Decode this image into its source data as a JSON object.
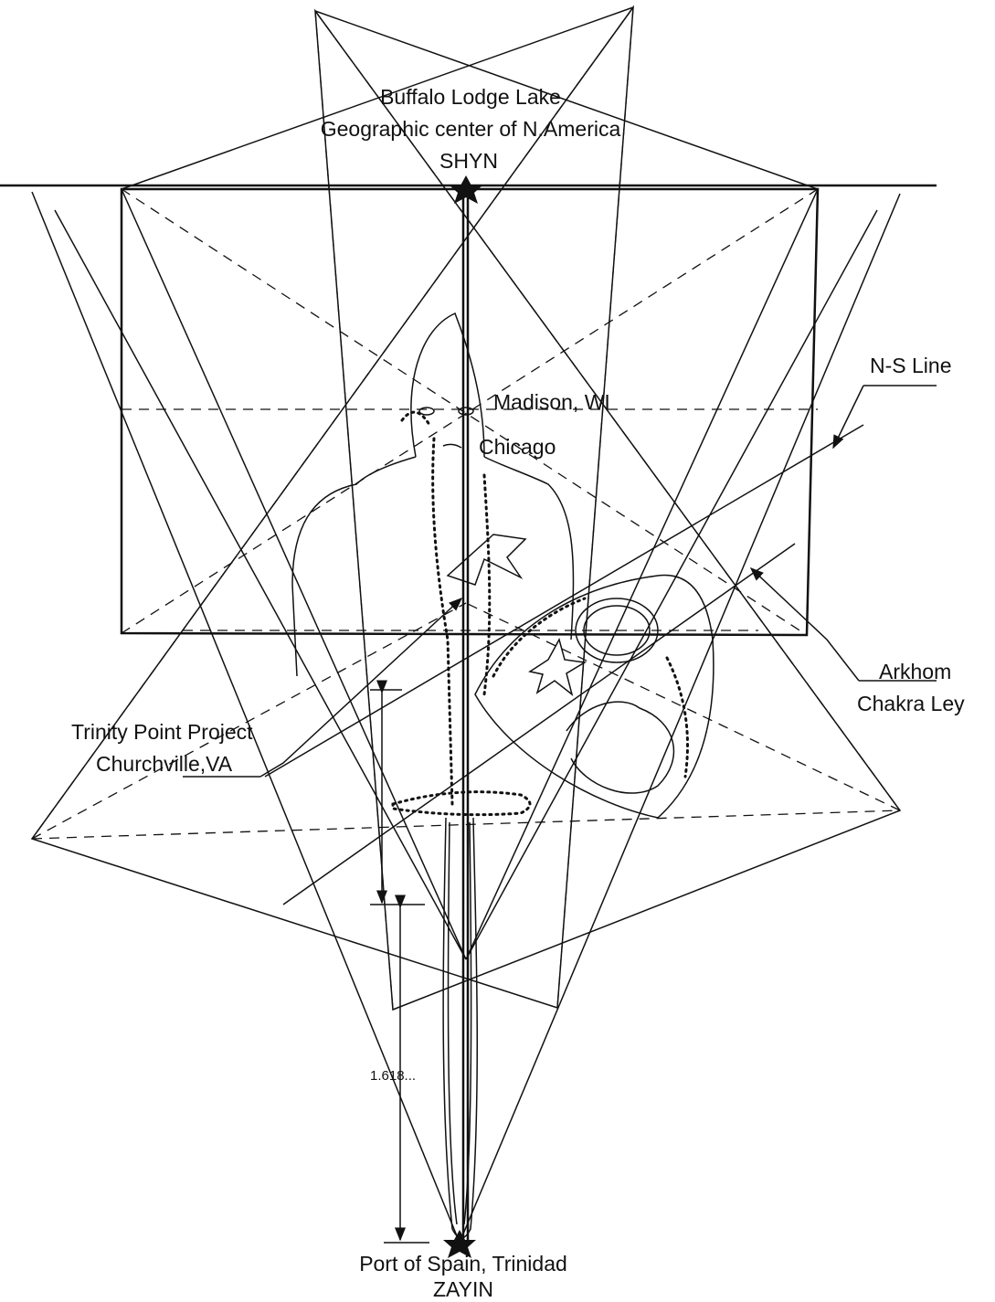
{
  "top_label": {
    "line1": "Buffalo Lodge Lake",
    "line2": "Geographic center of N.America",
    "line3": "SHYN"
  },
  "ns_line": "N-S Line",
  "madison": "Madison, WI",
  "chicago": "Chicago",
  "ley_label": {
    "line1": "Arkhom",
    "line2": "Chakra Ley"
  },
  "trinity_label": {
    "line1": "Trinity Point Project",
    "line2": "Churchville,VA"
  },
  "ratio": "1.618...",
  "bottom_label": {
    "line1": "Port of Spain, Trinidad",
    "line2": "ZAYIN"
  }
}
